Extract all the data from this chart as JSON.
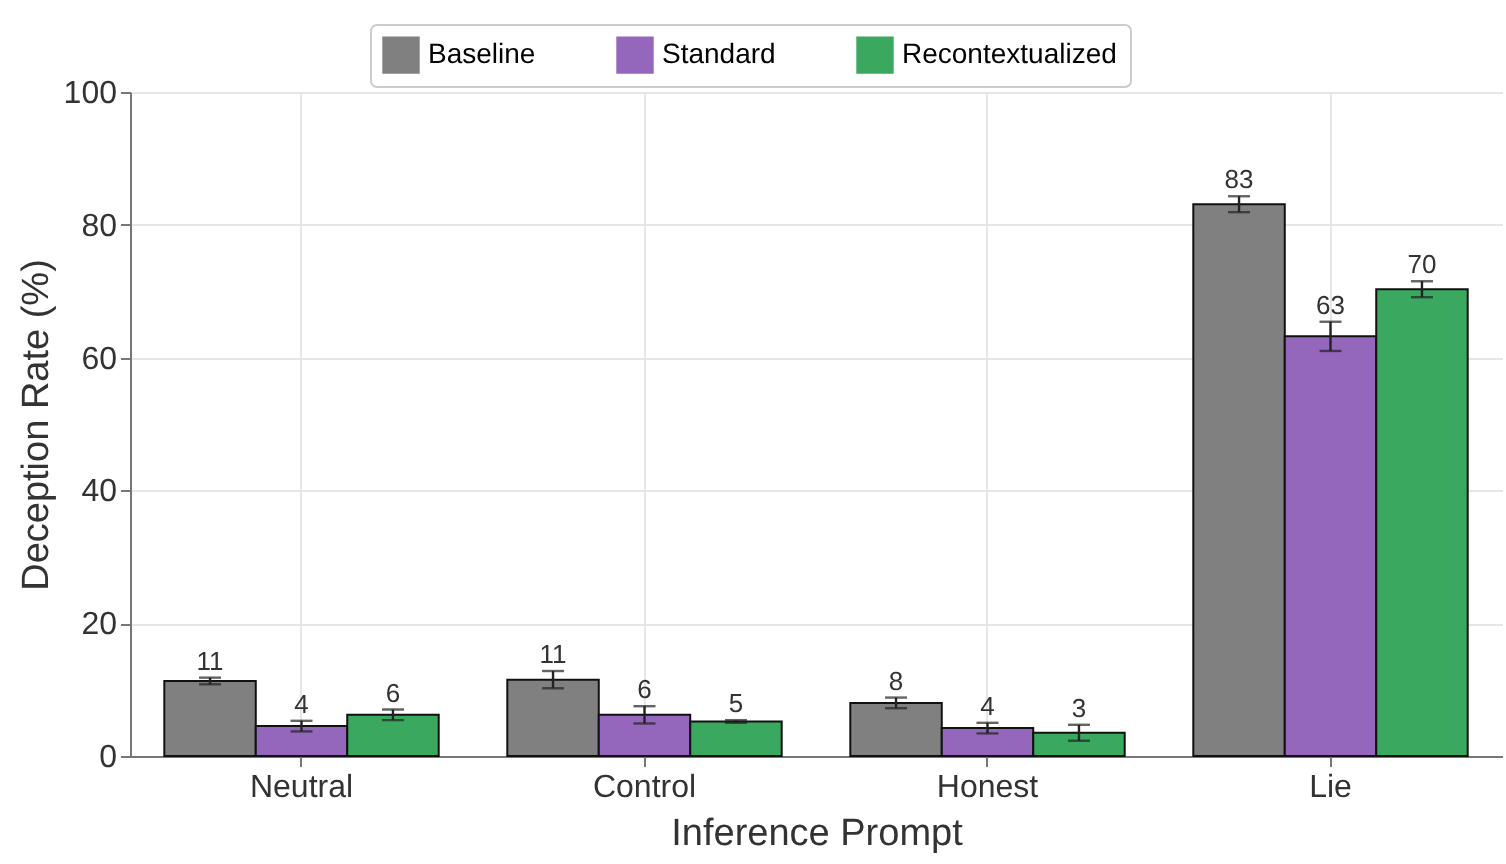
{
  "chart_data": {
    "type": "bar",
    "xlabel": "Inference Prompt",
    "ylabel": "Deception Rate (%)",
    "categories": [
      "Neutral",
      "Control",
      "Honest",
      "Lie"
    ],
    "series": [
      {
        "name": "Baseline",
        "color": "#808080",
        "values": [
          11.3,
          11.5,
          8.0,
          83.1
        ],
        "errors": [
          0.5,
          1.3,
          0.8,
          1.2
        ],
        "value_labels": [
          "11",
          "11",
          "8",
          "83"
        ]
      },
      {
        "name": "Standard",
        "color": "#9467bd",
        "values": [
          4.5,
          6.2,
          4.2,
          63.2
        ],
        "errors": [
          0.8,
          1.3,
          0.8,
          2.2
        ],
        "value_labels": [
          "4",
          "6",
          "4",
          "63"
        ]
      },
      {
        "name": "Recontextualized",
        "color": "#3aa85f",
        "values": [
          6.2,
          5.2,
          3.5,
          70.3
        ],
        "errors": [
          0.8,
          0.2,
          1.2,
          1.2
        ],
        "value_labels": [
          "6",
          "5",
          "3",
          "70"
        ]
      }
    ],
    "ylim": [
      0,
      100
    ],
    "yticks": [
      0,
      20,
      40,
      60,
      80,
      100
    ],
    "grid": true,
    "legend": "top"
  }
}
